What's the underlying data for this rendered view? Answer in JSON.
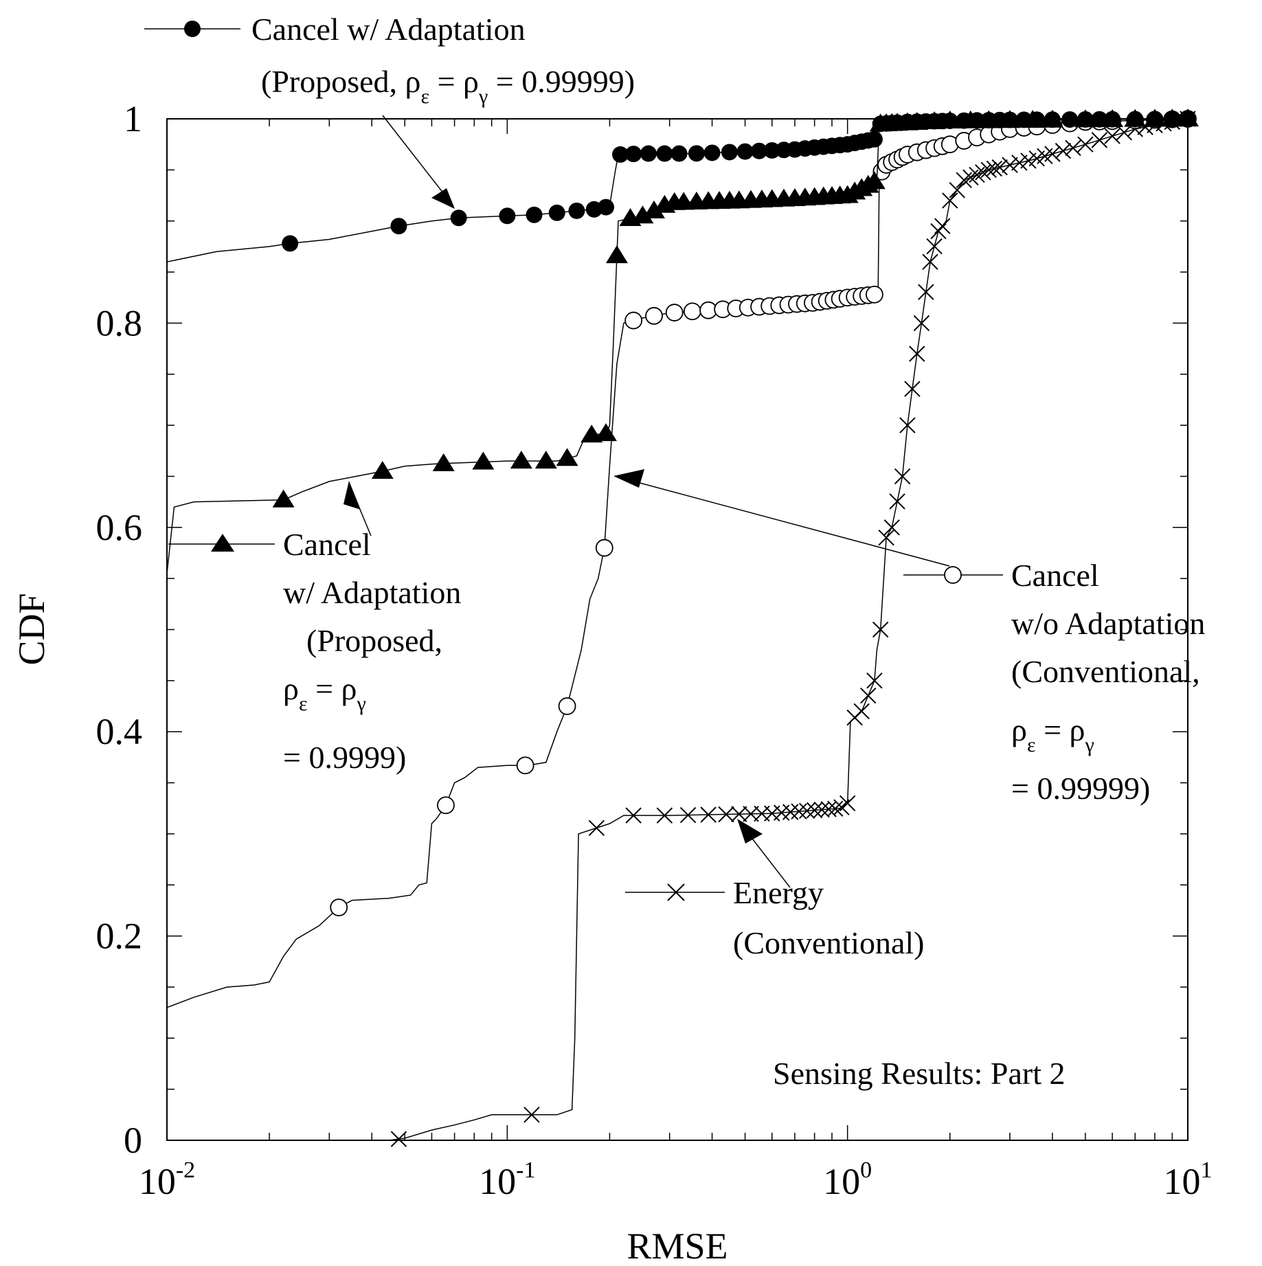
{
  "chart_data": {
    "type": "line",
    "title": "",
    "xlabel": "RMSE",
    "ylabel": "CDF",
    "xscale": "log",
    "xlim": [
      0.01,
      10
    ],
    "ylim": [
      0,
      1
    ],
    "x_ticks": [
      {
        "base": "10",
        "exp": "-2",
        "value": 0.01
      },
      {
        "base": "10",
        "exp": "-1",
        "value": 0.1
      },
      {
        "base": "10",
        "exp": "0",
        "value": 1
      },
      {
        "base": "10",
        "exp": "1",
        "value": 10
      }
    ],
    "y_ticks": [
      {
        "label": "0",
        "value": 0
      },
      {
        "label": "0.2",
        "value": 0.2
      },
      {
        "label": "0.4",
        "value": 0.4
      },
      {
        "label": "0.6",
        "value": 0.6
      },
      {
        "label": "0.8",
        "value": 0.8
      },
      {
        "label": "1",
        "value": 1
      }
    ],
    "annotation": "Sensing Results: Part 2",
    "series": [
      {
        "name": "Cancel w/ Adaptation (Proposed, ρε = ργ = 0.99999)",
        "marker": "filled-circle",
        "legend_lines": [
          "Cancel w/ Adaptation",
          "(Proposed, ρ",
          "ε",
          " = ρ",
          "γ",
          " = 0.99999)"
        ],
        "points": [
          [
            0.01,
            0.86
          ],
          [
            0.014,
            0.87
          ],
          [
            0.02,
            0.875
          ],
          [
            0.023,
            0.878
          ],
          [
            0.03,
            0.882
          ],
          [
            0.04,
            0.89
          ],
          [
            0.048,
            0.895
          ],
          [
            0.06,
            0.9
          ],
          [
            0.072,
            0.903
          ],
          [
            0.1,
            0.905
          ],
          [
            0.12,
            0.906
          ],
          [
            0.14,
            0.908
          ],
          [
            0.16,
            0.91
          ],
          [
            0.19,
            0.912
          ],
          [
            0.2,
            0.915
          ],
          [
            0.208,
            0.95
          ],
          [
            0.212,
            0.965
          ],
          [
            0.25,
            0.966
          ],
          [
            0.35,
            0.966
          ],
          [
            0.5,
            0.968
          ],
          [
            0.7,
            0.97
          ],
          [
            1.0,
            0.975
          ],
          [
            1.2,
            0.98
          ],
          [
            1.24,
            0.995
          ],
          [
            1.5,
            0.997
          ],
          [
            2.0,
            0.998
          ],
          [
            3.0,
            0.999
          ],
          [
            10,
            1.0
          ]
        ],
        "marker_x": [
          0.023,
          0.048,
          0.072,
          0.1,
          0.12,
          0.14,
          0.16,
          0.18,
          0.195,
          0.215,
          0.235,
          0.26,
          0.29,
          0.32,
          0.36,
          0.4,
          0.45,
          0.5,
          0.55,
          0.6,
          0.65,
          0.7,
          0.75,
          0.8,
          0.85,
          0.9,
          0.95,
          1.0,
          1.05,
          1.1,
          1.15,
          1.2,
          1.25,
          1.3,
          1.35,
          1.4,
          1.5,
          1.6,
          1.7,
          1.8,
          1.9,
          2.0,
          2.2,
          2.4,
          2.6,
          2.8,
          3.0,
          3.3,
          3.6,
          4.0,
          4.5,
          5.0,
          5.5,
          6.0,
          7.0,
          8.0,
          9.0,
          10.0
        ]
      },
      {
        "name": "Cancel w/ Adaptation (Proposed, ρε = ργ = 0.9999)",
        "marker": "filled-triangle",
        "legend_lines": [
          "Cancel",
          "w/ Adaptation",
          "(Proposed,",
          "ρ",
          "ε",
          " = ρ",
          "γ",
          " = 0.9999)"
        ],
        "points": [
          [
            0.01,
            0.555
          ],
          [
            0.0105,
            0.62
          ],
          [
            0.012,
            0.625
          ],
          [
            0.022,
            0.627
          ],
          [
            0.025,
            0.635
          ],
          [
            0.03,
            0.645
          ],
          [
            0.036,
            0.65
          ],
          [
            0.043,
            0.655
          ],
          [
            0.05,
            0.66
          ],
          [
            0.06,
            0.662
          ],
          [
            0.07,
            0.663
          ],
          [
            0.1,
            0.665
          ],
          [
            0.14,
            0.665
          ],
          [
            0.16,
            0.67
          ],
          [
            0.17,
            0.69
          ],
          [
            0.196,
            0.692
          ],
          [
            0.2,
            0.7
          ],
          [
            0.205,
            0.78
          ],
          [
            0.212,
            0.9
          ],
          [
            0.25,
            0.905
          ],
          [
            0.27,
            0.91
          ],
          [
            0.3,
            0.918
          ],
          [
            0.5,
            0.92
          ],
          [
            0.7,
            0.922
          ],
          [
            1.0,
            0.925
          ],
          [
            1.15,
            0.935
          ],
          [
            1.22,
            0.94
          ],
          [
            1.24,
            0.995
          ],
          [
            2.0,
            0.998
          ],
          [
            10,
            1.0
          ]
        ],
        "marker_x": [
          0.022,
          0.043,
          0.065,
          0.085,
          0.11,
          0.13,
          0.15,
          0.177,
          0.195,
          0.21,
          0.23,
          0.25,
          0.27,
          0.29,
          0.31,
          0.33,
          0.36,
          0.39,
          0.42,
          0.45,
          0.48,
          0.52,
          0.56,
          0.6,
          0.65,
          0.7,
          0.75,
          0.8,
          0.85,
          0.9,
          0.95,
          1.0,
          1.05,
          1.1,
          1.15,
          1.2,
          1.25,
          1.3,
          1.35,
          1.4,
          1.5,
          1.6,
          1.8,
          2.0,
          2.3,
          2.6,
          3.0,
          3.5,
          4.0,
          5.0,
          6.0,
          7.0,
          8.0,
          9.0,
          10.0
        ]
      },
      {
        "name": "Cancel w/o Adaptation (Conventional, ρε = ργ = 0.99999)",
        "marker": "open-circle",
        "legend_lines": [
          "Cancel",
          "w/o Adaptation",
          "(Conventional,",
          "ρ",
          "ε",
          " = ρ",
          "γ",
          " = 0.99999)"
        ],
        "points": [
          [
            0.01,
            0.13
          ],
          [
            0.012,
            0.14
          ],
          [
            0.015,
            0.15
          ],
          [
            0.018,
            0.152
          ],
          [
            0.02,
            0.155
          ],
          [
            0.022,
            0.18
          ],
          [
            0.024,
            0.197
          ],
          [
            0.028,
            0.21
          ],
          [
            0.032,
            0.228
          ],
          [
            0.035,
            0.235
          ],
          [
            0.045,
            0.237
          ],
          [
            0.052,
            0.24
          ],
          [
            0.055,
            0.25
          ],
          [
            0.058,
            0.252
          ],
          [
            0.06,
            0.31
          ],
          [
            0.062,
            0.315
          ],
          [
            0.066,
            0.328
          ],
          [
            0.07,
            0.35
          ],
          [
            0.075,
            0.355
          ],
          [
            0.082,
            0.365
          ],
          [
            0.1,
            0.367
          ],
          [
            0.113,
            0.367
          ],
          [
            0.12,
            0.368
          ],
          [
            0.13,
            0.37
          ],
          [
            0.14,
            0.4
          ],
          [
            0.15,
            0.425
          ],
          [
            0.165,
            0.48
          ],
          [
            0.175,
            0.53
          ],
          [
            0.185,
            0.55
          ],
          [
            0.193,
            0.58
          ],
          [
            0.2,
            0.66
          ],
          [
            0.21,
            0.76
          ],
          [
            0.22,
            0.8
          ],
          [
            0.25,
            0.805
          ],
          [
            0.3,
            0.81
          ],
          [
            0.5,
            0.815
          ],
          [
            0.8,
            0.82
          ],
          [
            1.0,
            0.825
          ],
          [
            1.2,
            0.828
          ],
          [
            1.23,
            0.83
          ],
          [
            1.24,
            0.945
          ],
          [
            1.3,
            0.955
          ],
          [
            1.5,
            0.965
          ],
          [
            2.0,
            0.975
          ],
          [
            3.0,
            0.99
          ],
          [
            5.0,
            0.997
          ],
          [
            10,
            1.0
          ]
        ],
        "marker_x": [
          0.032,
          0.066,
          0.113,
          0.15,
          0.193,
          0.235,
          0.27,
          0.31,
          0.35,
          0.39,
          0.43,
          0.47,
          0.51,
          0.55,
          0.59,
          0.63,
          0.67,
          0.71,
          0.75,
          0.79,
          0.83,
          0.87,
          0.91,
          0.95,
          1.0,
          1.05,
          1.1,
          1.15,
          1.2,
          1.26,
          1.3,
          1.35,
          1.4,
          1.45,
          1.5,
          1.6,
          1.7,
          1.8,
          1.9,
          2.0,
          2.2,
          2.4,
          2.6,
          2.8,
          3.0,
          3.3,
          3.6,
          4.0,
          4.5,
          5.0,
          5.5,
          6.0,
          7.0,
          8.0,
          9.0,
          10.0
        ]
      },
      {
        "name": "Energy (Conventional)",
        "marker": "x",
        "legend_lines": [
          "Energy",
          "(Conventional)"
        ],
        "points": [
          [
            0.03,
            0.0
          ],
          [
            0.045,
            0.0
          ],
          [
            0.05,
            0.002
          ],
          [
            0.06,
            0.01
          ],
          [
            0.07,
            0.015
          ],
          [
            0.08,
            0.02
          ],
          [
            0.09,
            0.025
          ],
          [
            0.1,
            0.025
          ],
          [
            0.14,
            0.025
          ],
          [
            0.155,
            0.03
          ],
          [
            0.158,
            0.1
          ],
          [
            0.162,
            0.3
          ],
          [
            0.2,
            0.31
          ],
          [
            0.22,
            0.318
          ],
          [
            0.3,
            0.318
          ],
          [
            0.6,
            0.32
          ],
          [
            0.95,
            0.325
          ],
          [
            1.0,
            0.33
          ],
          [
            1.02,
            0.41
          ],
          [
            1.1,
            0.42
          ],
          [
            1.2,
            0.45
          ],
          [
            1.22,
            0.48
          ],
          [
            1.25,
            0.5
          ],
          [
            1.3,
            0.59
          ],
          [
            1.35,
            0.6
          ],
          [
            1.45,
            0.65
          ],
          [
            1.5,
            0.7
          ],
          [
            1.6,
            0.77
          ],
          [
            1.65,
            0.8
          ],
          [
            1.75,
            0.86
          ],
          [
            1.85,
            0.89
          ],
          [
            1.95,
            0.9
          ],
          [
            2.0,
            0.92
          ],
          [
            2.2,
            0.94
          ],
          [
            2.6,
            0.95
          ],
          [
            3.5,
            0.96
          ],
          [
            5.0,
            0.975
          ],
          [
            7.0,
            0.99
          ],
          [
            10,
            1.0
          ]
        ],
        "marker_x": [
          0.048,
          0.118,
          0.183,
          0.235,
          0.29,
          0.34,
          0.39,
          0.44,
          0.48,
          0.52,
          0.56,
          0.6,
          0.64,
          0.68,
          0.72,
          0.76,
          0.8,
          0.84,
          0.88,
          0.92,
          0.96,
          1.0,
          1.05,
          1.1,
          1.15,
          1.2,
          1.25,
          1.3,
          1.35,
          1.4,
          1.45,
          1.5,
          1.55,
          1.6,
          1.65,
          1.7,
          1.75,
          1.8,
          1.85,
          1.9,
          2.0,
          2.1,
          2.2,
          2.3,
          2.4,
          2.5,
          2.6,
          2.7,
          2.8,
          3.0,
          3.2,
          3.4,
          3.6,
          3.8,
          4.0,
          4.3,
          4.6,
          5.0,
          5.5,
          6.0,
          6.5,
          7.0,
          7.5,
          8.0,
          8.5,
          9.0,
          9.5,
          10.0
        ]
      }
    ]
  }
}
